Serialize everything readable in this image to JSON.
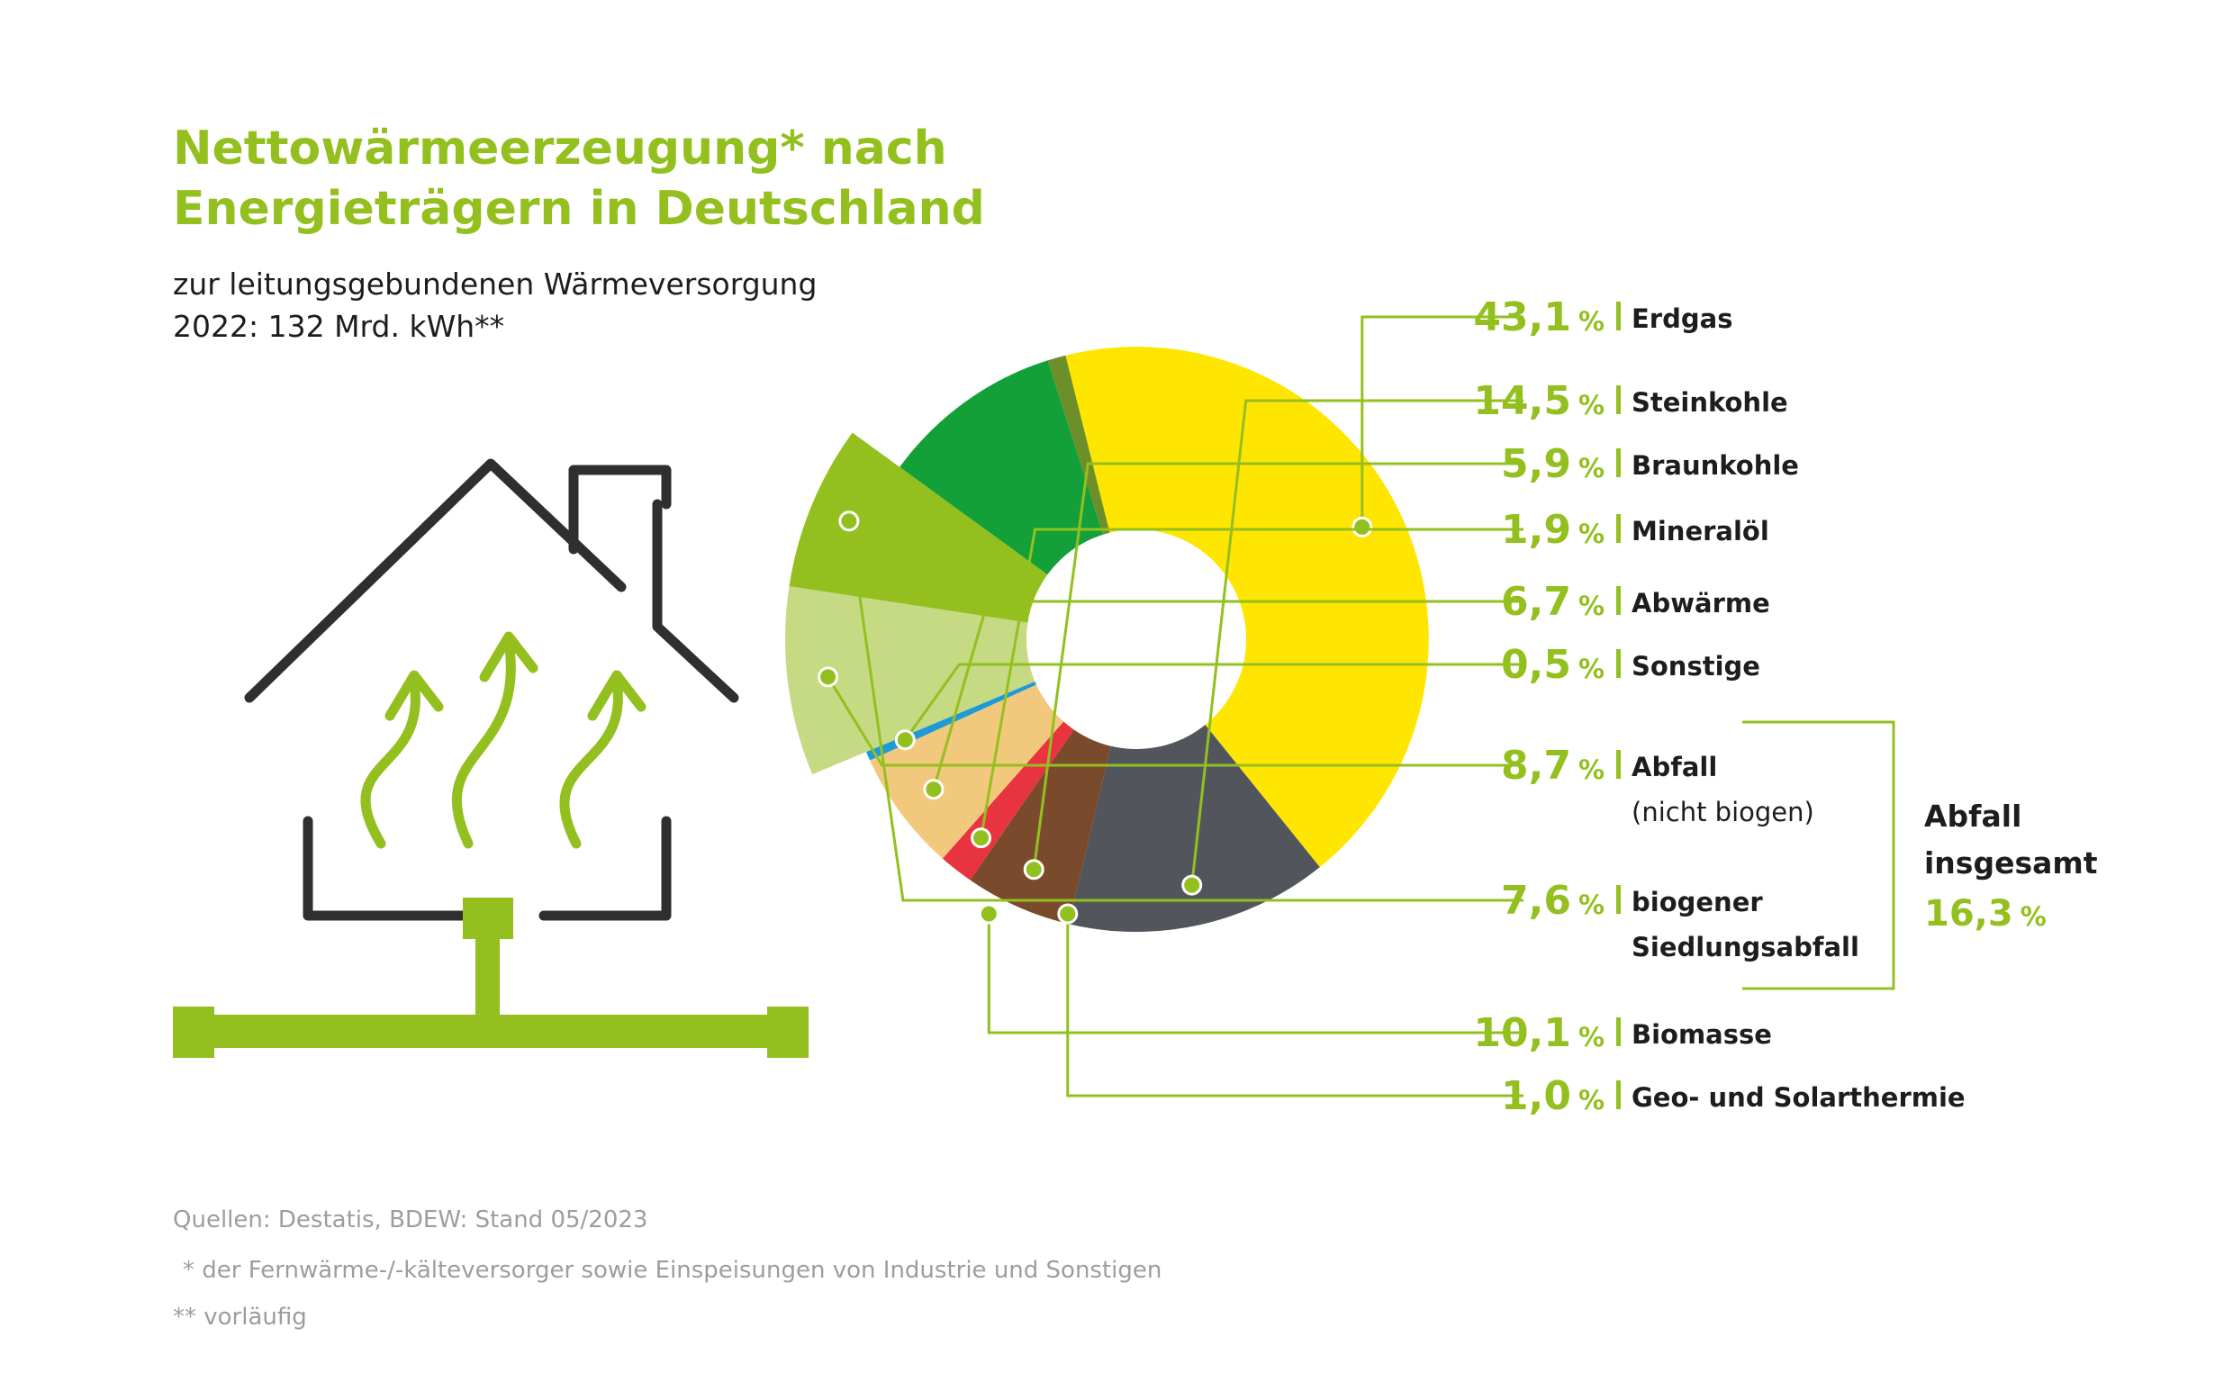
{
  "title_lines": [
    "Nettowärmeerzeugung* nach",
    "Energieträgern in Deutschland"
  ],
  "subtitle_lines": [
    "zur leitungsgebundenen Wärmeversorgung",
    "2022: 132 Mrd. kWh**"
  ],
  "footer": {
    "source": "Quellen: Destatis, BDEW: Stand 05/2023",
    "note1": "* der Fernwärme-/-kälteversorger sowie Einspeisungen von Industrie und Sonstigen",
    "note2": "** vorläufig"
  },
  "chart_data": {
    "type": "pie",
    "title": "Nettowärmeerzeugung* nach Energieträgern in Deutschland",
    "subtitle": "zur leitungsgebundenen Wärmeversorgung 2022: 132 Mrd. kWh**",
    "unit": "%",
    "slices": [
      {
        "label": "Erdgas",
        "value": 43.1,
        "display": "43,1",
        "color": "#ffe600",
        "sublabel": ""
      },
      {
        "label": "Steinkohle",
        "value": 14.5,
        "display": "14,5",
        "color": "#52555c",
        "sublabel": ""
      },
      {
        "label": "Braunkohle",
        "value": 5.9,
        "display": "5,9",
        "color": "#7a4a2c",
        "sublabel": ""
      },
      {
        "label": "Mineralöl",
        "value": 1.9,
        "display": "1,9",
        "color": "#e8343f",
        "sublabel": ""
      },
      {
        "label": "Abwärme",
        "value": 6.7,
        "display": "6,7",
        "color": "#f2c87c",
        "sublabel": ""
      },
      {
        "label": "Sonstige",
        "value": 0.5,
        "display": "0,5",
        "color": "#1f9ad6",
        "sublabel": ""
      },
      {
        "label": "Abfall",
        "value": 8.7,
        "display": "8,7",
        "color": "#c6da84",
        "sublabel": "(nicht biogen)"
      },
      {
        "label": "biogener",
        "value": 7.6,
        "display": "7,6",
        "color": "#93c01f",
        "sublabel": "Siedlungsabfall"
      },
      {
        "label": "Biomasse",
        "value": 10.1,
        "display": "10,1",
        "color": "#13a038",
        "sublabel": ""
      },
      {
        "label": "Geo- und Solarthermie",
        "value": 1.0,
        "display": "1,0",
        "color": "#6d8f2a",
        "sublabel": ""
      }
    ],
    "group": {
      "label_lines": [
        "Abfall",
        "insgesamt"
      ],
      "value": 16.3,
      "display": "16,3",
      "members": [
        "Abfall",
        "biogener"
      ]
    },
    "accent_color": "#93c01f"
  }
}
